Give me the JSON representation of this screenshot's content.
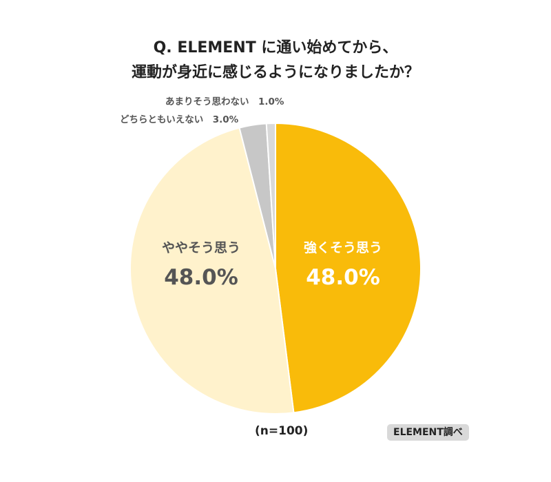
{
  "title": {
    "line1": "Q. ELEMENT に通い始めてから、",
    "line2": "運動が身近に感じるようになりましたか？"
  },
  "chart_data": {
    "type": "pie",
    "start": "12 o'clock, clockwise",
    "slices": [
      {
        "label": "強くそう思う",
        "value": 48.0,
        "value_label": "48.0%",
        "color": "#f9bb0a",
        "text_color": "#ffffff",
        "label_position": "inside"
      },
      {
        "label": "ややそう思う",
        "value": 48.0,
        "value_label": "48.0%",
        "color": "#fff2cc",
        "text_color": "#555555",
        "label_position": "inside"
      },
      {
        "label": "どちらともいえない",
        "value": 3.0,
        "value_label": "3.0%",
        "color": "#c7c7c7",
        "text_color": "#555555",
        "label_position": "outside"
      },
      {
        "label": "あまりそう思わない",
        "value": 1.0,
        "value_label": "1.0%",
        "color": "#d9d9d9",
        "text_color": "#555555",
        "label_position": "outside"
      }
    ]
  },
  "outside_labels": {
    "rarely": "あまりそう思わない　1.0%",
    "neutral": "どちらともいえない　3.0%"
  },
  "footer": {
    "sample_size": "(n=100)",
    "source": "ELEMENT調べ"
  }
}
